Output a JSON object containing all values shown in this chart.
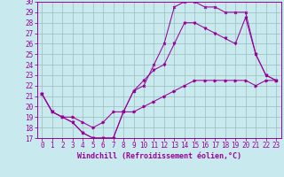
{
  "xlabel": "Windchill (Refroidissement éolien,°C)",
  "xlim": [
    0,
    23
  ],
  "ylim": [
    17,
    30
  ],
  "xticks": [
    0,
    1,
    2,
    3,
    4,
    5,
    6,
    7,
    8,
    9,
    10,
    11,
    12,
    13,
    14,
    15,
    16,
    17,
    18,
    19,
    20,
    21,
    22,
    23
  ],
  "yticks": [
    17,
    18,
    19,
    20,
    21,
    22,
    23,
    24,
    25,
    26,
    27,
    28,
    29,
    30
  ],
  "background_color": "#c8eaee",
  "line_color": "#990099",
  "grid_color": "#9bbcbe",
  "line1_x": [
    0,
    1,
    2,
    3,
    4,
    5,
    6,
    7,
    8,
    9,
    10,
    11,
    12,
    13,
    14,
    15,
    16,
    17,
    18,
    19,
    20,
    21,
    22,
    23
  ],
  "line1_y": [
    21.2,
    19.5,
    19.0,
    18.5,
    17.5,
    17.0,
    17.0,
    17.0,
    19.5,
    21.5,
    22.0,
    24.0,
    26.0,
    29.5,
    30.0,
    30.0,
    29.5,
    29.5,
    29.0,
    29.0,
    29.0,
    25.0,
    23.0,
    22.5
  ],
  "line2_x": [
    0,
    1,
    2,
    3,
    4,
    5,
    6,
    7,
    8,
    9,
    10,
    11,
    12,
    13,
    14,
    15,
    16,
    17,
    18,
    19,
    20,
    21,
    22,
    23
  ],
  "line2_y": [
    21.2,
    19.5,
    19.0,
    18.5,
    17.5,
    17.0,
    17.0,
    17.0,
    19.5,
    21.5,
    22.5,
    23.5,
    24.0,
    26.0,
    28.0,
    28.0,
    27.5,
    27.0,
    26.5,
    26.0,
    28.5,
    25.0,
    23.0,
    22.5
  ],
  "line3_x": [
    0,
    1,
    2,
    3,
    4,
    5,
    6,
    7,
    8,
    9,
    10,
    11,
    12,
    13,
    14,
    15,
    16,
    17,
    18,
    19,
    20,
    21,
    22,
    23
  ],
  "line3_y": [
    21.2,
    19.5,
    19.0,
    19.0,
    18.5,
    18.0,
    18.5,
    19.5,
    19.5,
    19.5,
    20.0,
    20.5,
    21.0,
    21.5,
    22.0,
    22.5,
    22.5,
    22.5,
    22.5,
    22.5,
    22.5,
    22.0,
    22.5,
    22.5
  ],
  "tick_fontsize": 5.5,
  "xlabel_fontsize": 6.0,
  "lw": 0.75,
  "ms": 2.0
}
